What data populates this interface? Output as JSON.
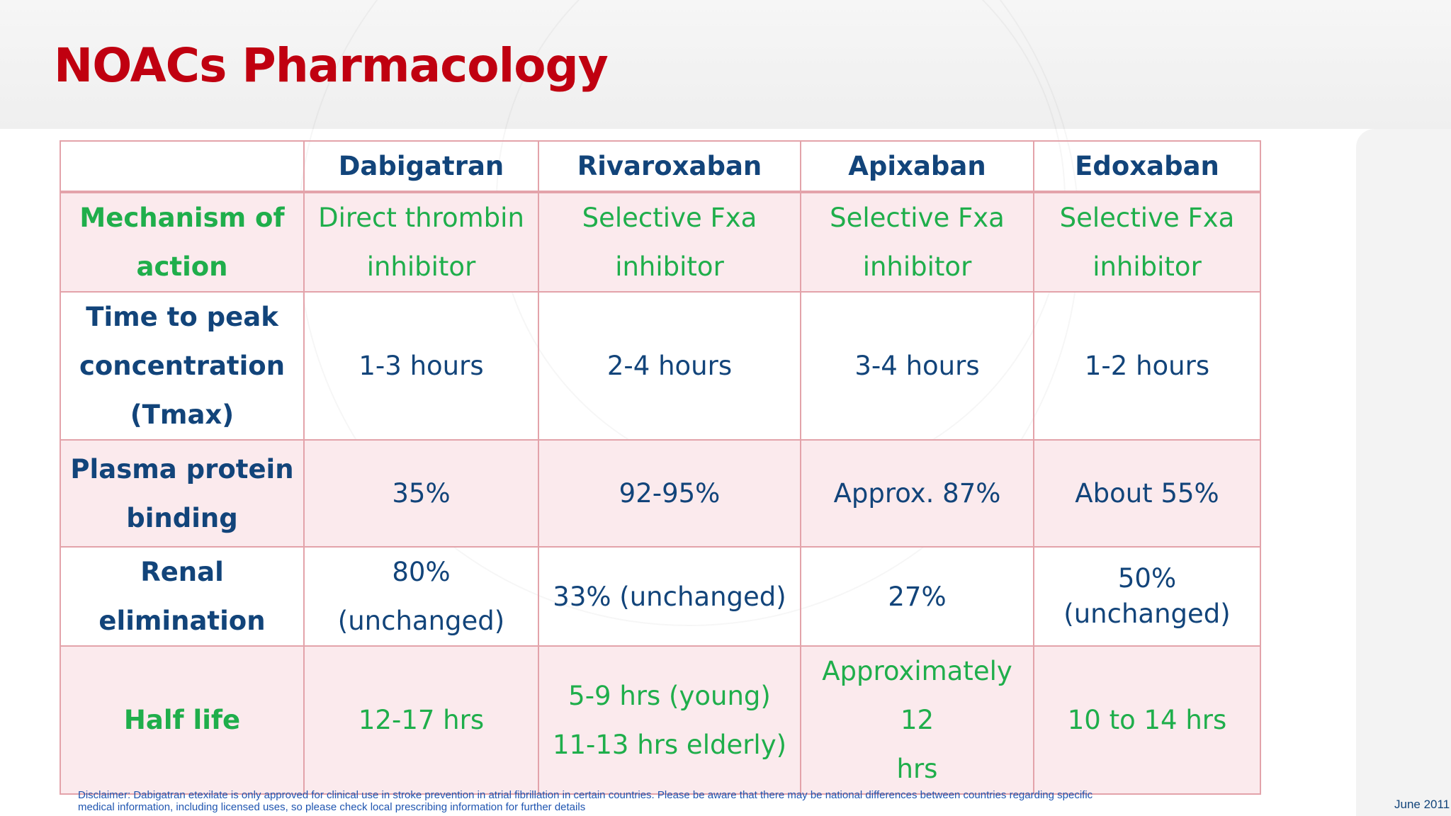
{
  "slide": {
    "title": "NOACs Pharmacology",
    "disclaimer_line1": "Disclaimer: Dabigatran etexilate is only approved for clinical use in stroke prevention in atrial fibrillation in certain countries. Please be aware that there may be national differences between countries regarding specific",
    "disclaimer_line2": "medical information, including licensed uses, so please check local prescribing information for further details",
    "date": "June 2011"
  },
  "table": {
    "headers": [
      "",
      "Dabigatran",
      "Rivaroxaban",
      "Apixaban",
      "Edoxaban"
    ],
    "rows": [
      {
        "label": [
          "Mechanism of",
          "action"
        ],
        "cells": [
          [
            "Direct thrombin",
            "inhibitor"
          ],
          [
            "Selective Fxa",
            "inhibitor"
          ],
          [
            "Selective Fxa",
            "inhibitor"
          ],
          [
            "Selective Fxa",
            "inhibitor"
          ]
        ]
      },
      {
        "label": [
          "Time to peak",
          "concentration",
          "(Tmax)"
        ],
        "cells": [
          [
            "1-3 hours"
          ],
          [
            "2-4 hours"
          ],
          [
            "3-4 hours"
          ],
          [
            "1-2 hours"
          ]
        ]
      },
      {
        "label": [
          "Plasma protein",
          "binding"
        ],
        "cells": [
          [
            "35%"
          ],
          [
            "92-95%"
          ],
          [
            "Approx. 87%"
          ],
          [
            "About 55%"
          ]
        ]
      },
      {
        "label": [
          "Renal",
          "elimination"
        ],
        "cells": [
          [
            "80%",
            "(unchanged)"
          ],
          [
            "33% (unchanged)"
          ],
          [
            "27%"
          ],
          [
            "50%",
            "(unchanged)"
          ]
        ]
      },
      {
        "label": [
          "Half life"
        ],
        "cells": [
          [
            "12-17 hrs"
          ],
          [
            "5-9 hrs (young)",
            "11-13 hrs elderly)"
          ],
          [
            "Approximately 12",
            "hrs"
          ],
          [
            "10 to 14 hrs"
          ]
        ]
      }
    ]
  },
  "colors": {
    "title": "#c00010",
    "navy_text": "#12447a",
    "green_text": "#1fae4b",
    "grid_border": "#e3a3aa",
    "pink_fill": "#fbeaed",
    "disclaimer_text": "#1f55b0"
  }
}
